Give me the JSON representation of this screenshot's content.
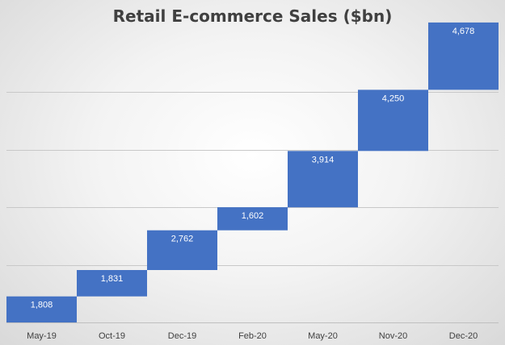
{
  "chart_data": {
    "type": "bar",
    "subtype": "waterfall",
    "title": "Retail E-commerce Sales ($bn)",
    "xlabel": "",
    "ylabel": "",
    "categories": [
      "May-19",
      "Oct-19",
      "Dec-19",
      "Feb-20",
      "May-20",
      "Nov-20",
      "Dec-20"
    ],
    "values": [
      1808,
      1831,
      2762,
      1602,
      3914,
      4250,
      4678
    ],
    "value_labels": [
      "1,808",
      "1,831",
      "2,762",
      "1,602",
      "3,914",
      "4,250",
      "4,678"
    ],
    "ylim": [
      0,
      20000
    ],
    "grid": true,
    "legend": "none",
    "bar_color": "#4472c4",
    "label_color": "#ffffff"
  }
}
